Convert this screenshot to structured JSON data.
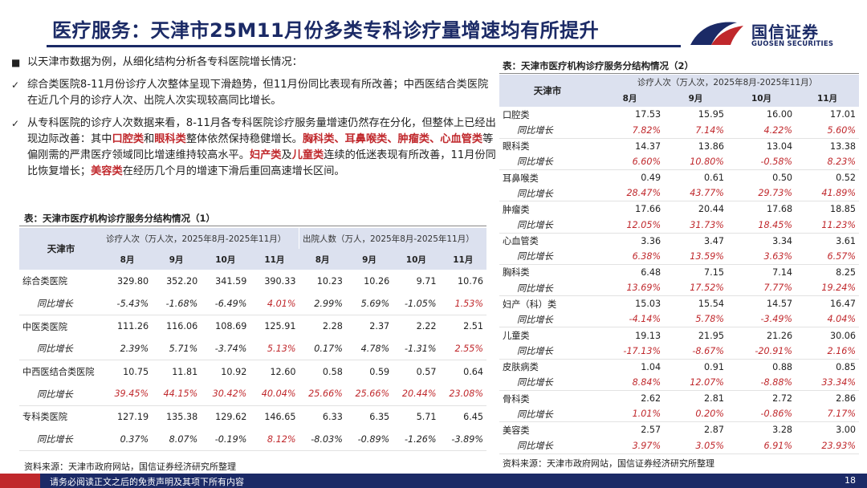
{
  "header": {
    "title": "医疗服务：天津市25M11月份多类专科诊疗量增速均有所提升",
    "logo_cn": "国信证券",
    "logo_en": "GUOSEN SECURITIES"
  },
  "bullets": [
    {
      "marker": "■",
      "parts": [
        {
          "t": "以天津市数据为例，从细化结构分析各专科医院增长情况："
        }
      ]
    },
    {
      "marker": "✓",
      "parts": [
        {
          "t": "综合类医院8-11月份诊疗人次整体呈现下滑趋势，但11月份同比表现有所改善；中西医结合类医院在近几个月的诊疗人次、出院人次实现较高同比增长。"
        }
      ]
    },
    {
      "marker": "✓",
      "parts": [
        {
          "t": "从专科医院的诊疗人次数据来看，8-11月各专科医院诊疗服务量增速仍然存在分化，但整体上已经出现边际改善：其中"
        },
        {
          "t": "口腔类",
          "red": true
        },
        {
          "t": "和"
        },
        {
          "t": "眼科类",
          "red": true
        },
        {
          "t": "整体依然保持稳健增长。"
        },
        {
          "t": "胸科类、耳鼻喉类、肿瘤类、心血管类",
          "red": true
        },
        {
          "t": "等偏刚需的严肃医疗领域同比增速维持较高水平。"
        },
        {
          "t": "妇产类",
          "red": true
        },
        {
          "t": "及"
        },
        {
          "t": "儿童类",
          "red": true
        },
        {
          "t": "连续的低迷表现有所改善，11月份同比恢复增长；"
        },
        {
          "t": "美容类",
          "red": true
        },
        {
          "t": "在经历几个月的增速下滑后重回高速增长区间。"
        }
      ]
    }
  ],
  "table1": {
    "title": "表：天津市医疗机构诊疗服务分结构情况（1）",
    "city": "天津市",
    "group1": "诊疗人次（万人次，2025年8月-2025年11月）",
    "group2": "出院人数（万人，2025年8月-2025年11月）",
    "months": [
      "8月",
      "9月",
      "10月",
      "11月",
      "8月",
      "9月",
      "10月",
      "11月"
    ],
    "yoy_label": "同比增长",
    "rows": [
      {
        "name": "综合类医院",
        "values": [
          "329.80",
          "352.20",
          "341.59",
          "390.33",
          "10.23",
          "10.26",
          "9.71",
          "10.76"
        ],
        "yoy": [
          "-5.43%",
          "-1.68%",
          "-6.49%",
          "4.01%",
          "2.99%",
          "5.69%",
          "-1.05%",
          "1.53%"
        ],
        "yoy_red": [
          false,
          false,
          false,
          true,
          false,
          false,
          false,
          true
        ]
      },
      {
        "name": "中医类医院",
        "values": [
          "111.26",
          "116.06",
          "108.69",
          "125.91",
          "2.28",
          "2.37",
          "2.22",
          "2.51"
        ],
        "yoy": [
          "2.39%",
          "5.71%",
          "-3.74%",
          "5.13%",
          "0.17%",
          "4.78%",
          "-1.31%",
          "2.55%"
        ],
        "yoy_red": [
          false,
          false,
          false,
          true,
          false,
          false,
          false,
          true
        ]
      },
      {
        "name": "中西医结合类医院",
        "values": [
          "10.75",
          "11.81",
          "10.92",
          "12.60",
          "0.58",
          "0.59",
          "0.57",
          "0.64"
        ],
        "yoy": [
          "39.45%",
          "44.15%",
          "30.42%",
          "40.04%",
          "25.66%",
          "25.66%",
          "20.44%",
          "23.08%"
        ],
        "yoy_red": [
          true,
          true,
          true,
          true,
          true,
          true,
          true,
          true
        ]
      },
      {
        "name": "专科类医院",
        "values": [
          "127.19",
          "135.38",
          "129.62",
          "146.65",
          "6.33",
          "6.35",
          "5.71",
          "6.45"
        ],
        "yoy": [
          "0.37%",
          "8.07%",
          "-0.19%",
          "8.12%",
          "-8.03%",
          "-0.89%",
          "-1.26%",
          "-3.89%"
        ],
        "yoy_red": [
          false,
          false,
          false,
          true,
          false,
          false,
          false,
          false
        ]
      }
    ],
    "source": "资料来源：天津市政府网站，国信证券经济研究所整理"
  },
  "table2": {
    "title": "表：天津市医疗机构诊疗服务分结构情况（2）",
    "city": "天津市",
    "group": "诊疗人次（万人次，2025年8月-2025年11月）",
    "months": [
      "8月",
      "9月",
      "10月",
      "11月"
    ],
    "yoy_label": "同比增长",
    "rows": [
      {
        "name": "口腔类",
        "values": [
          "17.53",
          "15.95",
          "16.00",
          "17.01"
        ],
        "yoy": [
          "7.82%",
          "7.14%",
          "4.22%",
          "5.60%"
        ]
      },
      {
        "name": "眼科类",
        "values": [
          "14.37",
          "13.86",
          "13.04",
          "13.38"
        ],
        "yoy": [
          "6.60%",
          "10.80%",
          "-0.58%",
          "8.23%"
        ]
      },
      {
        "name": "耳鼻喉类",
        "values": [
          "0.49",
          "0.61",
          "0.50",
          "0.52"
        ],
        "yoy": [
          "28.47%",
          "43.77%",
          "29.73%",
          "41.89%"
        ]
      },
      {
        "name": "肿瘤类",
        "values": [
          "17.66",
          "20.44",
          "17.68",
          "18.85"
        ],
        "yoy": [
          "12.05%",
          "31.73%",
          "18.45%",
          "11.23%"
        ]
      },
      {
        "name": "心血管类",
        "values": [
          "3.36",
          "3.47",
          "3.34",
          "3.61"
        ],
        "yoy": [
          "6.38%",
          "13.59%",
          "3.63%",
          "6.57%"
        ]
      },
      {
        "name": "胸科类",
        "values": [
          "6.48",
          "7.15",
          "7.14",
          "8.25"
        ],
        "yoy": [
          "13.69%",
          "17.52%",
          "7.77%",
          "19.24%"
        ]
      },
      {
        "name": "妇产（科）类",
        "values": [
          "15.03",
          "15.54",
          "14.57",
          "16.47"
        ],
        "yoy": [
          "-4.14%",
          "5.78%",
          "-3.49%",
          "4.04%"
        ]
      },
      {
        "name": "儿童类",
        "values": [
          "19.13",
          "21.95",
          "21.26",
          "30.06"
        ],
        "yoy": [
          "-17.13%",
          "-8.67%",
          "-20.91%",
          "2.16%"
        ]
      },
      {
        "name": "皮肤病类",
        "values": [
          "1.04",
          "0.91",
          "0.88",
          "0.85"
        ],
        "yoy": [
          "8.84%",
          "12.07%",
          "-8.88%",
          "33.34%"
        ]
      },
      {
        "name": "骨科类",
        "values": [
          "2.62",
          "2.81",
          "2.72",
          "2.86"
        ],
        "yoy": [
          "1.01%",
          "0.20%",
          "-0.86%",
          "7.17%"
        ]
      },
      {
        "name": "美容类",
        "values": [
          "2.57",
          "2.87",
          "3.28",
          "3.00"
        ],
        "yoy": [
          "3.97%",
          "3.05%",
          "6.91%",
          "23.93%"
        ]
      }
    ],
    "source": "资料来源：天津市政府网站，国信证券经济研究所整理"
  },
  "footer": {
    "disclaimer": "请务必阅读正文之后的免责声明及其项下所有内容",
    "page": "18"
  },
  "colors": {
    "brand_navy": "#1b2a66",
    "accent_red": "#c0282c",
    "header_fill": "#dce1ef"
  }
}
